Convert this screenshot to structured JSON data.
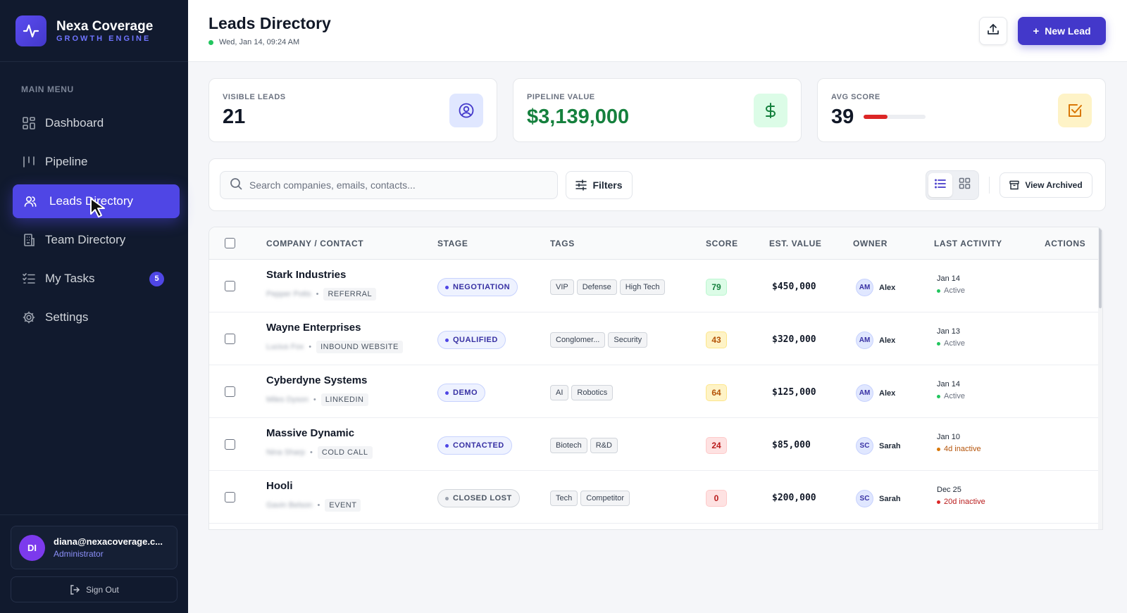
{
  "brand": {
    "name": "Nexa Coverage",
    "subtitle": "GROWTH ENGINE"
  },
  "sidebar": {
    "menu_label": "MAIN MENU",
    "items": [
      {
        "label": "Dashboard",
        "icon": "grid-icon"
      },
      {
        "label": "Pipeline",
        "icon": "columns-icon"
      },
      {
        "label": "Leads Directory",
        "icon": "users-icon",
        "active": true
      },
      {
        "label": "Team Directory",
        "icon": "building-icon"
      },
      {
        "label": "My Tasks",
        "icon": "list-checks-icon",
        "badge": "5"
      },
      {
        "label": "Settings",
        "icon": "gear-icon"
      }
    ],
    "user": {
      "initials": "DI",
      "email": "diana@nexacoverage.c...",
      "role": "Administrator"
    },
    "signout_label": "Sign Out"
  },
  "header": {
    "title": "Leads Directory",
    "datetime": "Wed, Jan 14, 09:24 AM",
    "new_lead_label": "New Lead"
  },
  "stats": {
    "visible_leads": {
      "label": "VISIBLE LEADS",
      "value": "21"
    },
    "pipeline_value": {
      "label": "PIPELINE VALUE",
      "value": "$3,139,000"
    },
    "avg_score": {
      "label": "AVG SCORE",
      "value": "39",
      "level": 0.39
    }
  },
  "toolbar": {
    "search_placeholder": "Search companies, emails, contacts...",
    "filters_label": "Filters",
    "view_archived_label": "View Archived"
  },
  "table": {
    "columns": [
      "COMPANY / CONTACT",
      "STAGE",
      "TAGS",
      "SCORE",
      "EST. VALUE",
      "OWNER",
      "LAST ACTIVITY",
      "ACTIONS"
    ],
    "rows": [
      {
        "company": "Stark Industries",
        "contact": "Pepper Potts",
        "source": "REFERRAL",
        "stage": "NEGOTIATION",
        "tags": [
          "VIP",
          "Defense",
          "High Tech"
        ],
        "score": "79",
        "value": "$450,000",
        "owner_initials": "AM",
        "owner": "Alex",
        "last_date": "Jan 14",
        "status": "Active"
      },
      {
        "company": "Wayne Enterprises",
        "contact": "Lucius Fox",
        "source": "INBOUND WEBSITE",
        "stage": "QUALIFIED",
        "tags": [
          "Conglomer...",
          "Security"
        ],
        "score": "43",
        "value": "$320,000",
        "owner_initials": "AM",
        "owner": "Alex",
        "last_date": "Jan 13",
        "status": "Active"
      },
      {
        "company": "Cyberdyne Systems",
        "contact": "Miles Dyson",
        "source": "LINKEDIN",
        "stage": "DEMO",
        "tags": [
          "AI",
          "Robotics"
        ],
        "score": "64",
        "value": "$125,000",
        "owner_initials": "AM",
        "owner": "Alex",
        "last_date": "Jan 14",
        "status": "Active"
      },
      {
        "company": "Massive Dynamic",
        "contact": "Nina Sharp",
        "source": "COLD CALL",
        "stage": "CONTACTED",
        "tags": [
          "Biotech",
          "R&D"
        ],
        "score": "24",
        "value": "$85,000",
        "owner_initials": "SC",
        "owner": "Sarah",
        "last_date": "Jan 10",
        "status": "4d inactive"
      },
      {
        "company": "Hooli",
        "contact": "Gavin Belson",
        "source": "EVENT",
        "stage": "CLOSED LOST",
        "tags": [
          "Tech",
          "Competitor"
        ],
        "score": "0",
        "value": "$200,000",
        "owner_initials": "SC",
        "owner": "Sarah",
        "last_date": "Dec 25",
        "status": "20d inactive"
      }
    ]
  },
  "colors": {
    "accent": "#4f46e5",
    "sidebar_bg": "#111a2e",
    "success": "#22c55e",
    "warning": "#d97706",
    "danger": "#dc2626",
    "money": "#15803d"
  }
}
